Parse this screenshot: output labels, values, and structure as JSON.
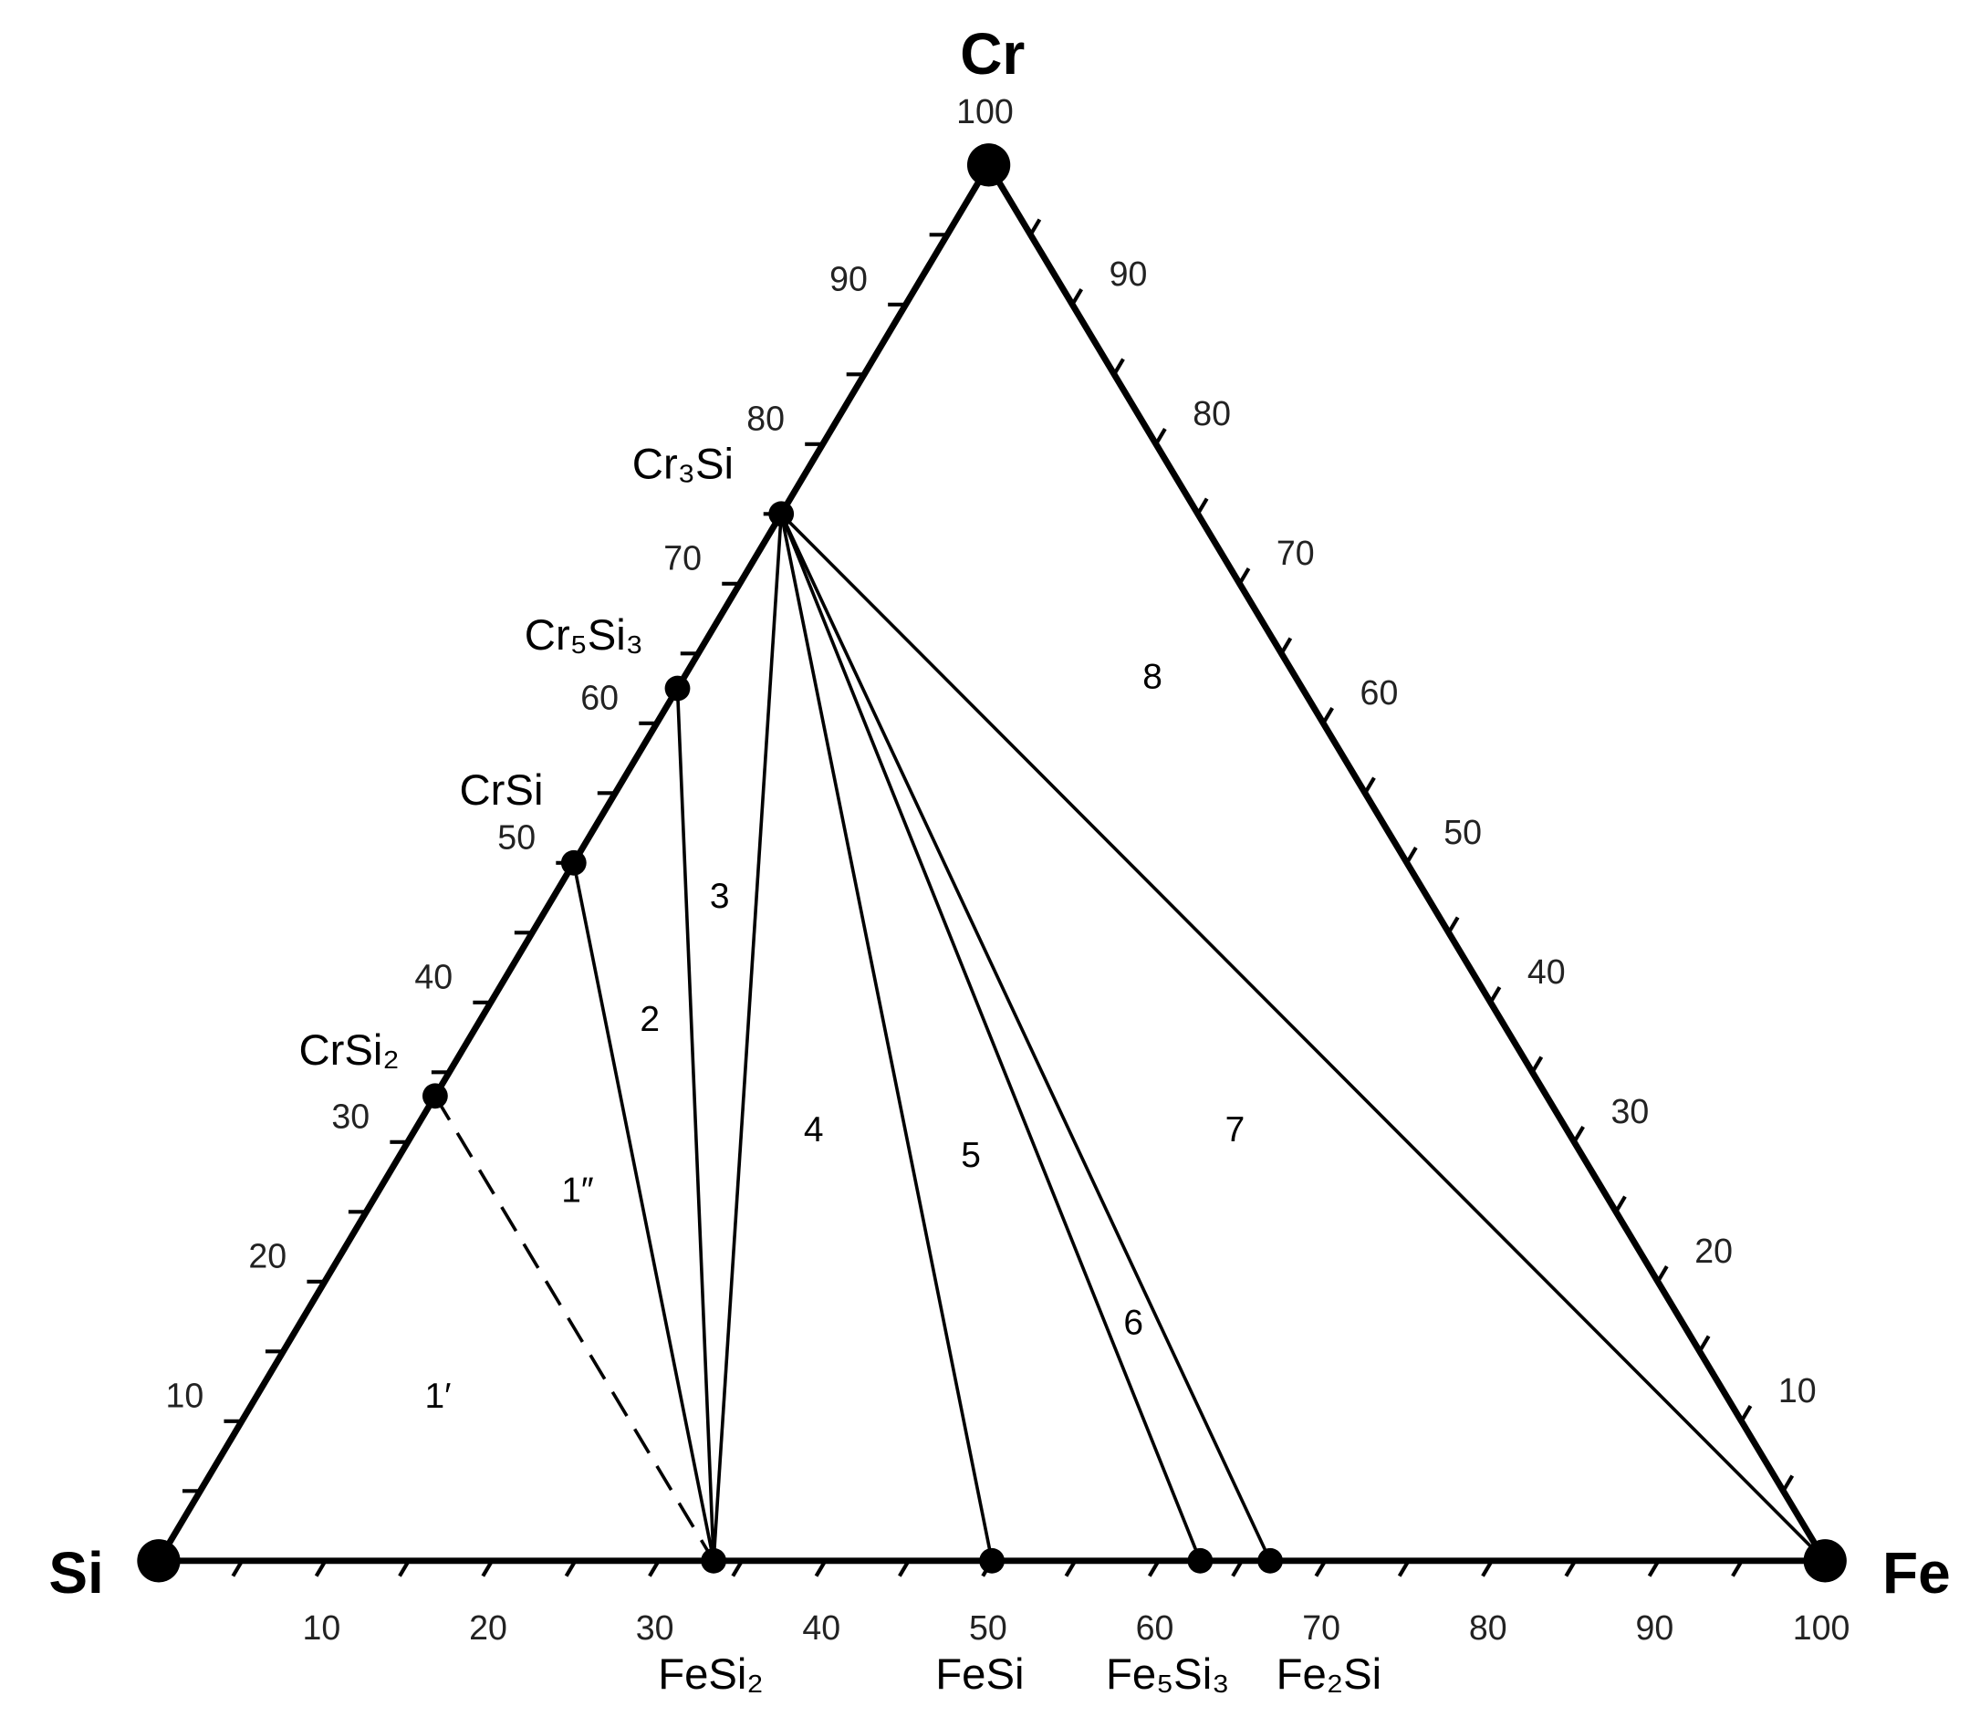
{
  "diagram": {
    "corners": [
      {
        "label": "Cr",
        "cr": 100,
        "fe": 0
      },
      {
        "label": "Si",
        "cr": 0,
        "fe": 0
      },
      {
        "label": "Fe",
        "cr": 0,
        "fe": 100
      }
    ],
    "left_axis": {
      "ticks": [
        10,
        20,
        30,
        40,
        50,
        60,
        70,
        80,
        90,
        100
      ],
      "minor_ticks": [
        5,
        15,
        25,
        35,
        45,
        55,
        65,
        75,
        85,
        95
      ]
    },
    "right_axis": {
      "ticks": [
        10,
        20,
        30,
        40,
        50,
        60,
        70,
        80,
        90
      ],
      "minor_ticks": [
        5,
        15,
        25,
        35,
        45,
        55,
        65,
        75,
        85,
        95
      ]
    },
    "bottom_axis": {
      "ticks": [
        10,
        20,
        30,
        40,
        50,
        60,
        70,
        80,
        90,
        100
      ],
      "minor_ticks": [
        5,
        15,
        25,
        35,
        45,
        55,
        65,
        75,
        85,
        95
      ]
    },
    "phases": [
      {
        "label": "Cr₃Si",
        "cr": 75,
        "fe": 0
      },
      {
        "label": "Cr₅Si₃",
        "cr": 62.5,
        "fe": 0
      },
      {
        "label": "CrSi",
        "cr": 50,
        "fe": 0
      },
      {
        "label": "CrSi₂",
        "cr": 33.3,
        "fe": 0
      },
      {
        "label": "FeSi₂",
        "cr": 0,
        "fe": 33.3
      },
      {
        "label": "FeSi",
        "cr": 0,
        "fe": 50
      },
      {
        "label": "Fe₅Si₃",
        "cr": 0,
        "fe": 62.5
      },
      {
        "label": "Fe₂Si",
        "cr": 0,
        "fe": 66.7
      }
    ],
    "tie_lines": [
      {
        "from": {
          "cr": 33.3,
          "fe": 0
        },
        "to": {
          "cr": 0,
          "fe": 33.3
        },
        "dashed": true
      },
      {
        "from": {
          "cr": 50,
          "fe": 0
        },
        "to": {
          "cr": 0,
          "fe": 33.3
        },
        "dashed": false
      },
      {
        "from": {
          "cr": 62.5,
          "fe": 0
        },
        "to": {
          "cr": 0,
          "fe": 33.3
        },
        "dashed": false
      },
      {
        "from": {
          "cr": 75,
          "fe": 0
        },
        "to": {
          "cr": 0,
          "fe": 33.3
        },
        "dashed": false
      },
      {
        "from": {
          "cr": 75,
          "fe": 0
        },
        "to": {
          "cr": 0,
          "fe": 50
        },
        "dashed": false
      },
      {
        "from": {
          "cr": 75,
          "fe": 0
        },
        "to": {
          "cr": 0,
          "fe": 62.5
        },
        "dashed": false
      },
      {
        "from": {
          "cr": 75,
          "fe": 0
        },
        "to": {
          "cr": 0,
          "fe": 66.7
        },
        "dashed": false
      },
      {
        "from": {
          "cr": 75,
          "fe": 0
        },
        "to": {
          "cr": 0,
          "fe": 100
        },
        "dashed": false
      }
    ],
    "regions": [
      "1′",
      "1″",
      "2",
      "3",
      "4",
      "5",
      "6",
      "7",
      "8"
    ]
  }
}
